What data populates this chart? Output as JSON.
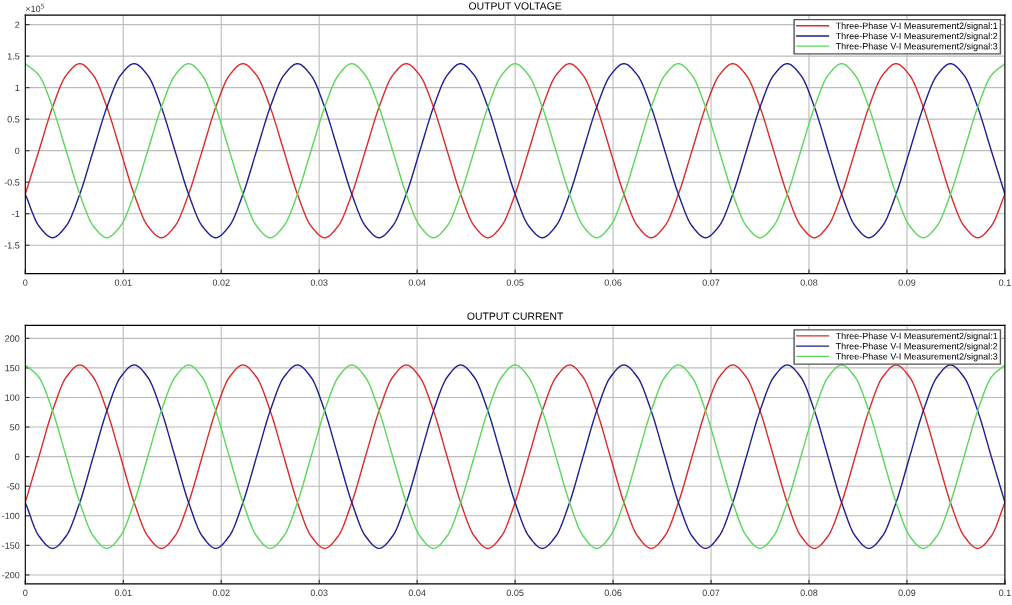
{
  "chart_data": [
    {
      "type": "line",
      "title": "OUTPUT VOLTAGE",
      "annotations": [
        "×10$^{5}$"
      ],
      "x": [
        0,
        0.00139,
        0.00278,
        0.00417,
        0.00556,
        0.00694,
        0.00833,
        0.00972,
        0.01111,
        0.0125,
        0.01389,
        0.01528,
        0.01667,
        0.01806,
        0.01944,
        0.02083,
        0.02222,
        0.02361,
        0.025,
        0.02639,
        0.02778,
        0.02917,
        0.03056,
        0.03194,
        0.03333,
        0.03472,
        0.03611,
        0.0375,
        0.03889,
        0.04028,
        0.04167,
        0.04306,
        0.04444,
        0.04583,
        0.04722,
        0.04861,
        0.05,
        0.05139,
        0.05278,
        0.05417,
        0.05556,
        0.05694,
        0.05833,
        0.05972,
        0.06111,
        0.0625,
        0.06389,
        0.06528,
        0.06667,
        0.06806,
        0.06944,
        0.07083,
        0.07222,
        0.07361,
        0.075,
        0.07639,
        0.07778,
        0.07917,
        0.08056,
        0.08194,
        0.08333,
        0.08472,
        0.08611,
        0.0875,
        0.08889,
        0.09028,
        0.09167,
        0.09306,
        0.09444,
        0.09583,
        0.09722,
        0.09861,
        0.1
      ],
      "series": [
        {
          "name": "Three-Phase V-I Measurement2/signal:1",
          "color": "#e02828",
          "values": [
            -0.69,
            0,
            0.69,
            1.195,
            1.38,
            1.195,
            0.69,
            0,
            -0.69,
            -1.195,
            -1.38,
            -1.195,
            -0.69,
            0,
            0.69,
            1.195,
            1.38,
            1.195,
            0.69,
            0,
            -0.69,
            -1.195,
            -1.38,
            -1.195,
            -0.69,
            0,
            0.69,
            1.195,
            1.38,
            1.195,
            0.69,
            0,
            -0.69,
            -1.195,
            -1.38,
            -1.195,
            -0.69,
            0,
            0.69,
            1.195,
            1.38,
            1.195,
            0.69,
            0,
            -0.69,
            -1.195,
            -1.38,
            -1.195,
            -0.69,
            0,
            0.69,
            1.195,
            1.38,
            1.195,
            0.69,
            0,
            -0.69,
            -1.195,
            -1.38,
            -1.195,
            -0.69,
            0,
            0.69,
            1.195,
            1.38,
            1.195,
            0.69,
            0,
            -0.69,
            -1.195,
            -1.38,
            -1.195,
            -0.69
          ]
        },
        {
          "name": "Three-Phase V-I Measurement2/signal:2",
          "color": "#1c1c96",
          "values": [
            -0.69,
            -1.195,
            -1.38,
            -1.195,
            -0.69,
            0,
            0.69,
            1.195,
            1.38,
            1.195,
            0.69,
            0,
            -0.69,
            -1.195,
            -1.38,
            -1.195,
            -0.69,
            0,
            0.69,
            1.195,
            1.38,
            1.195,
            0.69,
            0,
            -0.69,
            -1.195,
            -1.38,
            -1.195,
            -0.69,
            0,
            0.69,
            1.195,
            1.38,
            1.195,
            0.69,
            0,
            -0.69,
            -1.195,
            -1.38,
            -1.195,
            -0.69,
            0,
            0.69,
            1.195,
            1.38,
            1.195,
            0.69,
            0,
            -0.69,
            -1.195,
            -1.38,
            -1.195,
            -0.69,
            0,
            0.69,
            1.195,
            1.38,
            1.195,
            0.69,
            0,
            -0.69,
            -1.195,
            -1.38,
            -1.195,
            -0.69,
            0,
            0.69,
            1.195,
            1.38,
            1.195,
            0.69,
            0,
            -0.69
          ]
        },
        {
          "name": "Three-Phase V-I Measurement2/signal:3",
          "color": "#5ad65a",
          "values": [
            1.38,
            1.195,
            0.69,
            0,
            -0.69,
            -1.195,
            -1.38,
            -1.195,
            -0.69,
            0,
            0.69,
            1.195,
            1.38,
            1.195,
            0.69,
            0,
            -0.69,
            -1.195,
            -1.38,
            -1.195,
            -0.69,
            0,
            0.69,
            1.195,
            1.38,
            1.195,
            0.69,
            0,
            -0.69,
            -1.195,
            -1.38,
            -1.195,
            -0.69,
            0,
            0.69,
            1.195,
            1.38,
            1.195,
            0.69,
            0,
            -0.69,
            -1.195,
            -1.38,
            -1.195,
            -0.69,
            0,
            0.69,
            1.195,
            1.38,
            1.195,
            0.69,
            0,
            -0.69,
            -1.195,
            -1.38,
            -1.195,
            -0.69,
            0,
            0.69,
            1.195,
            1.38,
            1.195,
            0.69,
            0,
            -0.69,
            -1.195,
            -1.38,
            -1.195,
            -0.69,
            0,
            0.69,
            1.195,
            1.38
          ]
        }
      ],
      "xlim": [
        0,
        0.1
      ],
      "xticks": [
        0,
        0.01,
        0.02,
        0.03,
        0.04,
        0.05,
        0.06,
        0.07,
        0.08,
        0.09,
        0.1
      ],
      "ylim": [
        -1.95,
        2.15
      ],
      "yticks": [
        -1.5,
        -1,
        -0.5,
        0,
        0.5,
        1,
        1.5,
        2
      ],
      "grid": true,
      "legend": "top right",
      "marker": "none",
      "line_style": "solid"
    },
    {
      "type": "line",
      "title": "OUTPUT CURRENT",
      "x": [
        0,
        0.00139,
        0.00278,
        0.00417,
        0.00556,
        0.00694,
        0.00833,
        0.00972,
        0.01111,
        0.0125,
        0.01389,
        0.01528,
        0.01667,
        0.01806,
        0.01944,
        0.02083,
        0.02222,
        0.02361,
        0.025,
        0.02639,
        0.02778,
        0.02917,
        0.03056,
        0.03194,
        0.03333,
        0.03472,
        0.03611,
        0.0375,
        0.03889,
        0.04028,
        0.04167,
        0.04306,
        0.04444,
        0.04583,
        0.04722,
        0.04861,
        0.05,
        0.05139,
        0.05278,
        0.05417,
        0.05556,
        0.05694,
        0.05833,
        0.05972,
        0.06111,
        0.0625,
        0.06389,
        0.06528,
        0.06667,
        0.06806,
        0.06944,
        0.07083,
        0.07222,
        0.07361,
        0.075,
        0.07639,
        0.07778,
        0.07917,
        0.08056,
        0.08194,
        0.08333,
        0.08472,
        0.08611,
        0.0875,
        0.08889,
        0.09028,
        0.09167,
        0.09306,
        0.09444,
        0.09583,
        0.09722,
        0.09861,
        0.1
      ],
      "series": [
        {
          "name": "Three-Phase V-I Measurement2/signal:1",
          "color": "#e02828",
          "values": [
            -77.5,
            0,
            77.5,
            134.2,
            155,
            134.2,
            77.5,
            0,
            -77.5,
            -134.2,
            -155,
            -134.2,
            -77.5,
            0,
            77.5,
            134.2,
            155,
            134.2,
            77.5,
            0,
            -77.5,
            -134.2,
            -155,
            -134.2,
            -77.5,
            0,
            77.5,
            134.2,
            155,
            134.2,
            77.5,
            0,
            -77.5,
            -134.2,
            -155,
            -134.2,
            -77.5,
            0,
            77.5,
            134.2,
            155,
            134.2,
            77.5,
            0,
            -77.5,
            -134.2,
            -155,
            -134.2,
            -77.5,
            0,
            77.5,
            134.2,
            155,
            134.2,
            77.5,
            0,
            -77.5,
            -134.2,
            -155,
            -134.2,
            -77.5,
            0,
            77.5,
            134.2,
            155,
            134.2,
            77.5,
            0,
            -77.5,
            -134.2,
            -155,
            -134.2,
            -77.5
          ]
        },
        {
          "name": "Three-Phase V-I Measurement2/signal:2",
          "color": "#1c1c96",
          "values": [
            -77.5,
            -134.2,
            -155,
            -134.2,
            -77.5,
            0,
            77.5,
            134.2,
            155,
            134.2,
            77.5,
            0,
            -77.5,
            -134.2,
            -155,
            -134.2,
            -77.5,
            0,
            77.5,
            134.2,
            155,
            134.2,
            77.5,
            0,
            -77.5,
            -134.2,
            -155,
            -134.2,
            -77.5,
            0,
            77.5,
            134.2,
            155,
            134.2,
            77.5,
            0,
            -77.5,
            -134.2,
            -155,
            -134.2,
            -77.5,
            0,
            77.5,
            134.2,
            155,
            134.2,
            77.5,
            0,
            -77.5,
            -134.2,
            -155,
            -134.2,
            -77.5,
            0,
            77.5,
            134.2,
            155,
            134.2,
            77.5,
            0,
            -77.5,
            -134.2,
            -155,
            -134.2,
            -77.5,
            0,
            77.5,
            134.2,
            155,
            134.2,
            77.5,
            0,
            -77.5
          ]
        },
        {
          "name": "Three-Phase V-I Measurement2/signal:3",
          "color": "#5ad65a",
          "values": [
            155,
            134.2,
            77.5,
            0,
            -77.5,
            -134.2,
            -155,
            -134.2,
            -77.5,
            0,
            77.5,
            134.2,
            155,
            134.2,
            77.5,
            0,
            -77.5,
            -134.2,
            -155,
            -134.2,
            -77.5,
            0,
            77.5,
            134.2,
            155,
            134.2,
            77.5,
            0,
            -77.5,
            -134.2,
            -155,
            -134.2,
            -77.5,
            0,
            77.5,
            134.2,
            155,
            134.2,
            77.5,
            0,
            -77.5,
            -134.2,
            -155,
            -134.2,
            -77.5,
            0,
            77.5,
            134.2,
            155,
            134.2,
            77.5,
            0,
            -77.5,
            -134.2,
            -155,
            -134.2,
            -77.5,
            0,
            77.5,
            134.2,
            155,
            134.2,
            77.5,
            0,
            -77.5,
            -134.2,
            -155,
            -134.2,
            -77.5,
            0,
            77.5,
            134.2,
            155
          ]
        }
      ],
      "xlim": [
        0,
        0.1
      ],
      "xticks": [
        0,
        0.01,
        0.02,
        0.03,
        0.04,
        0.05,
        0.06,
        0.07,
        0.08,
        0.09,
        0.1
      ],
      "ylim": [
        -215,
        222
      ],
      "yticks": [
        -200,
        -150,
        -100,
        -50,
        0,
        50,
        100,
        150,
        200
      ],
      "grid": true,
      "legend": "top right",
      "marker": "none",
      "line_style": "solid"
    }
  ]
}
